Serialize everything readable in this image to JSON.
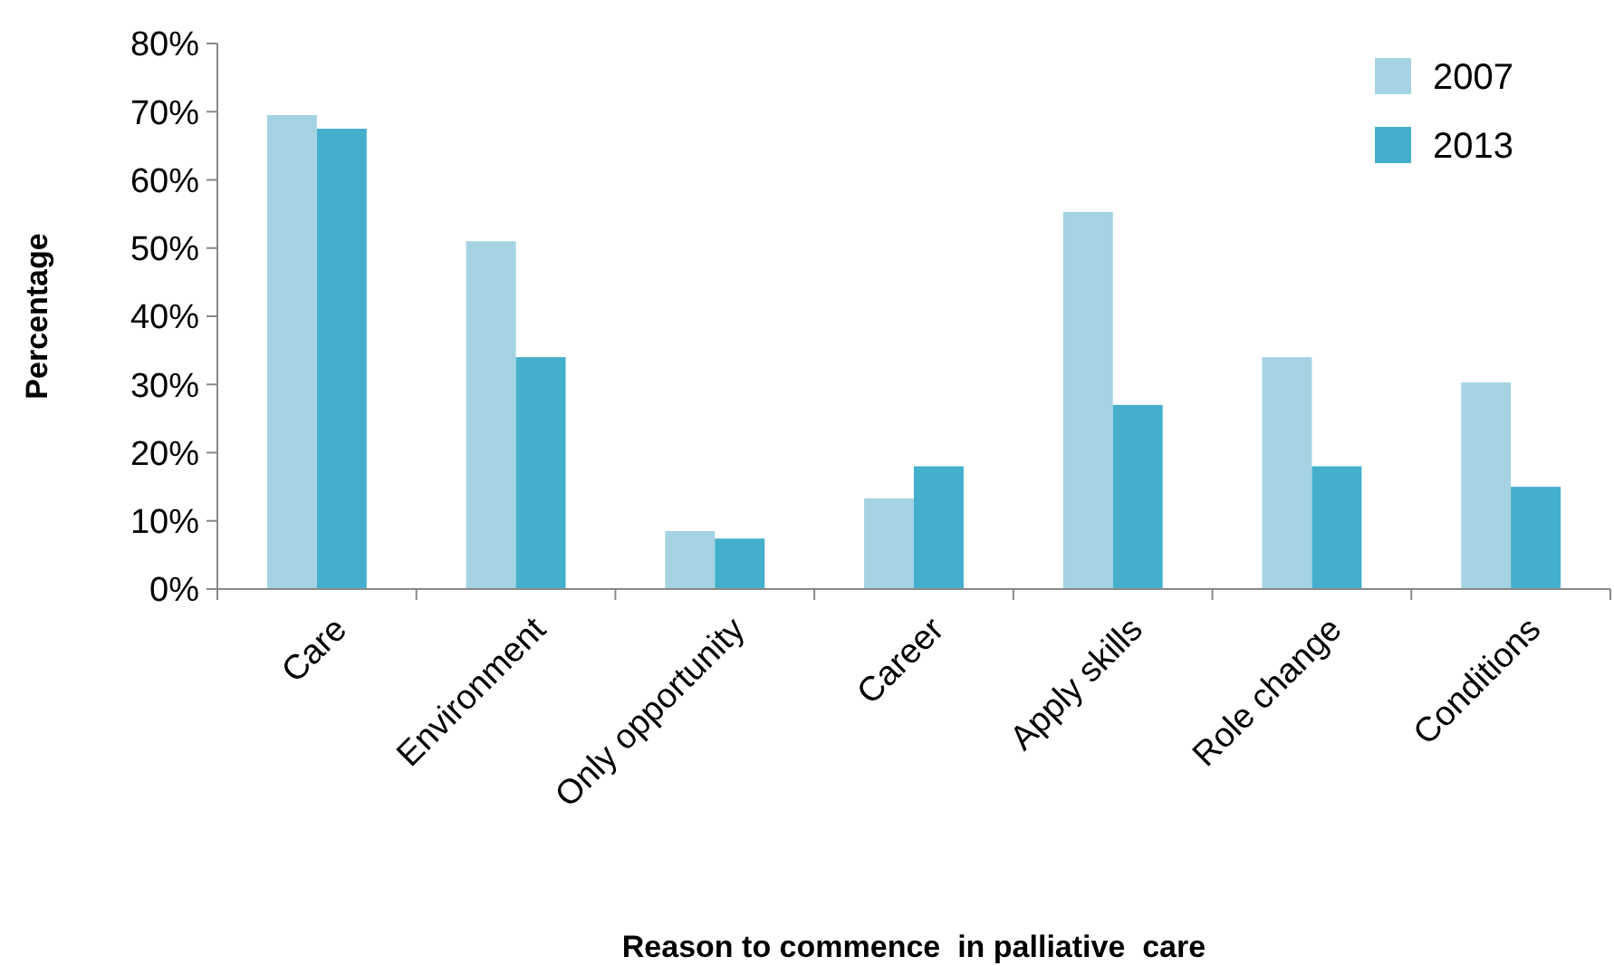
{
  "chart_data": {
    "type": "bar",
    "xlabel": "Reason to commence  in palliative  care",
    "ylabel": "Percentage",
    "categories": [
      "Care",
      "Environment",
      "Only opportunity",
      "Career",
      "Apply skills",
      "Role change",
      "Conditions"
    ],
    "series": [
      {
        "name": "2007",
        "color": "#a5d3e3",
        "values": [
          69.5,
          51,
          8.5,
          13.3,
          55.3,
          34,
          30.3
        ]
      },
      {
        "name": "2013",
        "color": "#44afcd",
        "values": [
          67.5,
          34,
          7.4,
          18,
          27,
          18,
          15
        ]
      }
    ],
    "ylim": [
      0,
      80
    ],
    "yticks": [
      {
        "value": 0,
        "label": "0%"
      },
      {
        "value": 10,
        "label": "10%"
      },
      {
        "value": 20,
        "label": "20%"
      },
      {
        "value": 30,
        "label": "30%"
      },
      {
        "value": 40,
        "label": "40%"
      },
      {
        "value": 50,
        "label": "50%"
      },
      {
        "value": 60,
        "label": "60%"
      },
      {
        "value": 70,
        "label": "70%"
      },
      {
        "value": 80,
        "label": "80%"
      }
    ],
    "grid": false,
    "legend": "top right"
  }
}
